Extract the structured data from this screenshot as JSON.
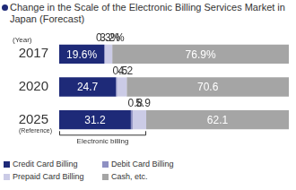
{
  "chart_data": {
    "type": "bar",
    "orientation": "horizontal",
    "stacked": true,
    "data_labels": true,
    "tick_labels": "y",
    "legend": "bottom",
    "title": "Change in the Scale of the Electronic Billing Services Market in Japan (Forecast)",
    "y_label": "(Year)",
    "annotations": [
      "(Reference)",
      "Electronic billing"
    ],
    "categories": [
      "2017",
      "2020",
      "2025"
    ],
    "xlim": [
      0,
      100
    ],
    "series": [
      {
        "name": "Credit Card Billing",
        "color": "#1e2a78",
        "values": [
          19.6,
          24.7,
          31.2
        ],
        "value_labels": [
          "19.6%",
          "24.7",
          "31.2"
        ]
      },
      {
        "name": "Debit Card Billing",
        "color": "#8e90c2",
        "values": [
          0.3,
          0.5,
          0.8
        ],
        "value_labels": [
          "0.3%",
          "0.5",
          "0.8"
        ]
      },
      {
        "name": "Prepaid Card Billing",
        "color": "#cbcbe6",
        "values": [
          3.2,
          4.2,
          5.9
        ],
        "value_labels": [
          "3.2%",
          "4.2",
          "5.9"
        ]
      },
      {
        "name": "Cash, etc.",
        "color": "#a5a5a5",
        "values": [
          76.9,
          70.6,
          62.1
        ],
        "value_labels": [
          "76.9%",
          "70.6",
          "62.1"
        ]
      }
    ]
  }
}
